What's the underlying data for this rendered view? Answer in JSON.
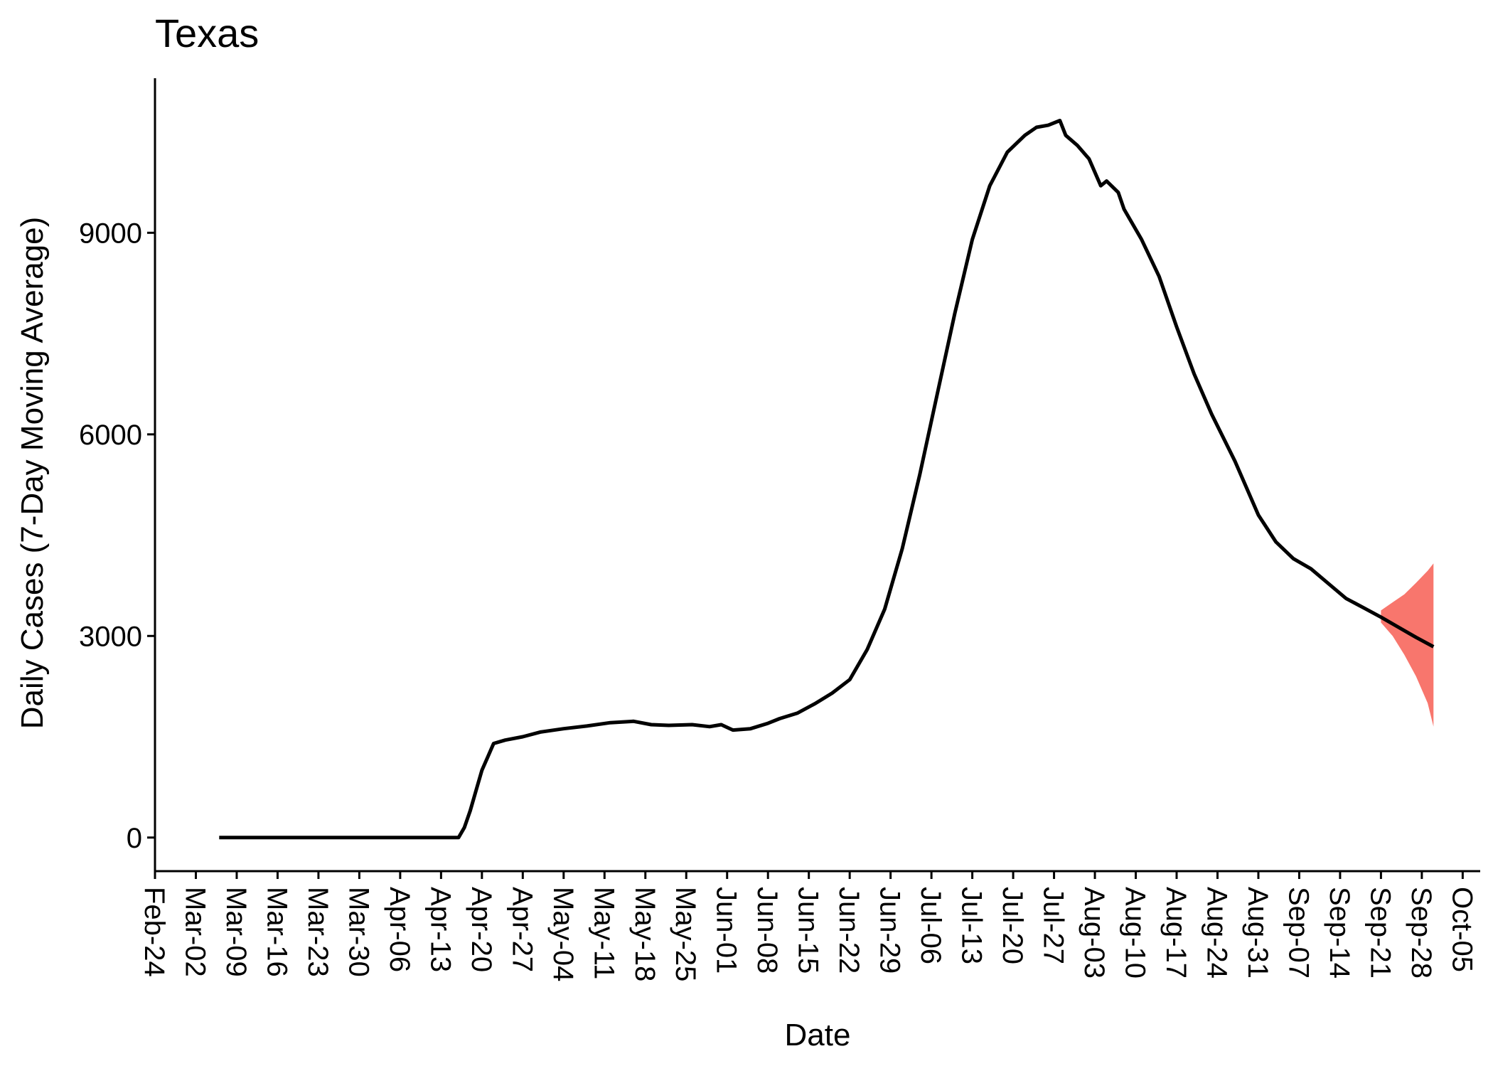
{
  "chart_data": {
    "type": "line",
    "title": "Texas",
    "xlabel": "Date",
    "ylabel": "Daily Cases (7-Day Moving Average)",
    "x_tick_labels": [
      "Feb-24",
      "Mar-02",
      "Mar-09",
      "Mar-16",
      "Mar-23",
      "Mar-30",
      "Apr-06",
      "Apr-13",
      "Apr-20",
      "Apr-27",
      "May-04",
      "May-11",
      "May-18",
      "May-25",
      "Jun-01",
      "Jun-08",
      "Jun-15",
      "Jun-22",
      "Jun-29",
      "Jul-06",
      "Jul-13",
      "Jul-20",
      "Jul-27",
      "Aug-03",
      "Aug-10",
      "Aug-17",
      "Aug-24",
      "Aug-31",
      "Sep-07",
      "Sep-14",
      "Sep-21",
      "Sep-28",
      "Oct-05"
    ],
    "y_ticks": [
      0,
      3000,
      6000,
      9000
    ],
    "y_tick_labels": [
      "0",
      "3000",
      "6000",
      "9000"
    ],
    "x_range": [
      "Feb-24",
      "Oct-08"
    ],
    "ylim": [
      -500,
      11300
    ],
    "grid": false,
    "colors": {
      "line": "#000000",
      "forecast_band": "#f8766d"
    },
    "series": [
      {
        "values": [
          {
            "x": "Mar-06",
            "y": 0
          },
          {
            "x": "Mar-13",
            "y": 0
          },
          {
            "x": "Mar-20",
            "y": 0
          },
          {
            "x": "Mar-27",
            "y": 0
          },
          {
            "x": "Apr-03",
            "y": 0
          },
          {
            "x": "Apr-10",
            "y": 0
          },
          {
            "x": "Apr-16",
            "y": 0
          },
          {
            "x": "Apr-17",
            "y": 150
          },
          {
            "x": "Apr-18",
            "y": 400
          },
          {
            "x": "Apr-19",
            "y": 700
          },
          {
            "x": "Apr-20",
            "y": 1000
          },
          {
            "x": "Apr-21",
            "y": 1200
          },
          {
            "x": "Apr-22",
            "y": 1400
          },
          {
            "x": "Apr-24",
            "y": 1450
          },
          {
            "x": "Apr-27",
            "y": 1500
          },
          {
            "x": "Apr-30",
            "y": 1570
          },
          {
            "x": "May-04",
            "y": 1620
          },
          {
            "x": "May-08",
            "y": 1660
          },
          {
            "x": "May-12",
            "y": 1710
          },
          {
            "x": "May-16",
            "y": 1730
          },
          {
            "x": "May-19",
            "y": 1680
          },
          {
            "x": "May-22",
            "y": 1670
          },
          {
            "x": "May-26",
            "y": 1680
          },
          {
            "x": "May-29",
            "y": 1650
          },
          {
            "x": "May-31",
            "y": 1680
          },
          {
            "x": "Jun-02",
            "y": 1600
          },
          {
            "x": "Jun-05",
            "y": 1620
          },
          {
            "x": "Jun-08",
            "y": 1700
          },
          {
            "x": "Jun-10",
            "y": 1770
          },
          {
            "x": "Jun-13",
            "y": 1850
          },
          {
            "x": "Jun-16",
            "y": 1990
          },
          {
            "x": "Jun-19",
            "y": 2150
          },
          {
            "x": "Jun-22",
            "y": 2350
          },
          {
            "x": "Jun-25",
            "y": 2800
          },
          {
            "x": "Jun-28",
            "y": 3400
          },
          {
            "x": "Jul-01",
            "y": 4300
          },
          {
            "x": "Jul-04",
            "y": 5400
          },
          {
            "x": "Jul-07",
            "y": 6600
          },
          {
            "x": "Jul-10",
            "y": 7800
          },
          {
            "x": "Jul-13",
            "y": 8900
          },
          {
            "x": "Jul-16",
            "y": 9700
          },
          {
            "x": "Jul-19",
            "y": 10200
          },
          {
            "x": "Jul-22",
            "y": 10450
          },
          {
            "x": "Jul-24",
            "y": 10570
          },
          {
            "x": "Jul-26",
            "y": 10600
          },
          {
            "x": "Jul-28",
            "y": 10670
          },
          {
            "x": "Jul-29",
            "y": 10450
          },
          {
            "x": "Jul-31",
            "y": 10300
          },
          {
            "x": "Aug-02",
            "y": 10100
          },
          {
            "x": "Aug-04",
            "y": 9700
          },
          {
            "x": "Aug-05",
            "y": 9770
          },
          {
            "x": "Aug-07",
            "y": 9600
          },
          {
            "x": "Aug-08",
            "y": 9350
          },
          {
            "x": "Aug-11",
            "y": 8900
          },
          {
            "x": "Aug-14",
            "y": 8350
          },
          {
            "x": "Aug-17",
            "y": 7600
          },
          {
            "x": "Aug-20",
            "y": 6900
          },
          {
            "x": "Aug-23",
            "y": 6300
          },
          {
            "x": "Aug-27",
            "y": 5600
          },
          {
            "x": "Aug-31",
            "y": 4800
          },
          {
            "x": "Sep-03",
            "y": 4400
          },
          {
            "x": "Sep-06",
            "y": 4150
          },
          {
            "x": "Sep-09",
            "y": 4000
          },
          {
            "x": "Sep-12",
            "y": 3780
          },
          {
            "x": "Sep-15",
            "y": 3560
          },
          {
            "x": "Sep-18",
            "y": 3420
          },
          {
            "x": "Sep-21",
            "y": 3280
          },
          {
            "x": "Sep-24",
            "y": 3130
          },
          {
            "x": "Sep-27",
            "y": 2980
          },
          {
            "x": "Sep-30",
            "y": 2840
          }
        ]
      }
    ],
    "forecast_band": [
      {
        "x": "Sep-21",
        "lo": 3200,
        "hi": 3380
      },
      {
        "x": "Sep-23",
        "lo": 3000,
        "hi": 3500
      },
      {
        "x": "Sep-25",
        "lo": 2720,
        "hi": 3620
      },
      {
        "x": "Sep-27",
        "lo": 2400,
        "hi": 3790
      },
      {
        "x": "Sep-29",
        "lo": 2000,
        "hi": 3970
      },
      {
        "x": "Sep-30",
        "lo": 1650,
        "hi": 4080
      }
    ]
  }
}
